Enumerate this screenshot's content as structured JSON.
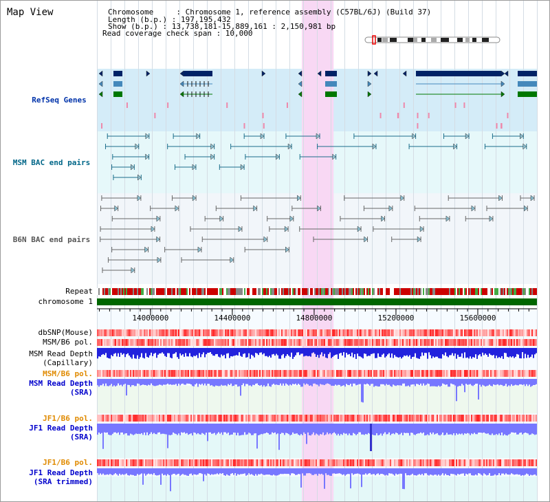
{
  "title": "Map View",
  "info": {
    "chromosome": "Chromosome     : Chromosome 1, reference assembly (C57BL/6J) (Build 37)",
    "length": "Length (b.p.) : 197,195,432",
    "show": "Show (b.p.) : 13,738,181-15,889,161 : 2,150,981 bp",
    "span": "Read coverage check span : 10,000"
  },
  "view": {
    "start": 13738181,
    "end": 15889161,
    "highlight": [
      14740000,
      14895000
    ]
  },
  "tracks": {
    "refseq": {
      "label": "RefSeq Genes",
      "color": "#0033aa"
    },
    "msm_bac": {
      "label": "MSM BAC end pairs",
      "color": "#006688"
    },
    "b6n_bac": {
      "label": "B6N BAC end pairs",
      "color": "#555555"
    },
    "repeat": {
      "label": "Repeat"
    },
    "chromosome": {
      "label": "chromosome 1"
    },
    "dbsnp": {
      "label": "dbSNP(Mouse)"
    },
    "msm_b6_pol": {
      "label": "MSM/B6 pol."
    },
    "msm_depth_cap": {
      "label": "MSM Read Depth\n(Capillary)"
    },
    "msm_b6_pol2": {
      "label": "MSM/B6 pol.",
      "color": "#e08a00"
    },
    "msm_depth_sra": {
      "label": "MSM Read Depth\n(SRA)",
      "color": "#0000cc"
    },
    "jf1_b6_pol": {
      "label": "JF1/B6 pol.",
      "color": "#e08a00"
    },
    "jf1_depth_sra": {
      "label": "JF1 Read Depth\n(SRA)",
      "color": "#0000cc"
    },
    "jf1_b6_pol2": {
      "label": "JF1/B6 pol.",
      "color": "#e08a00"
    },
    "jf1_depth_trim": {
      "label": "JF1 Read Depth\n(SRA trimmed)",
      "color": "#0000cc"
    }
  },
  "axis_ticks": [
    {
      "pos": 14000000,
      "label": "14000000"
    },
    {
      "pos": 14400000,
      "label": "14400000"
    },
    {
      "pos": 14800000,
      "label": "14800000"
    },
    {
      "pos": 15200000,
      "label": "15200000"
    },
    {
      "pos": 15600000,
      "label": "15600000"
    }
  ],
  "colors": {
    "highlight": "#f8d8f4",
    "refseq_bg": "#d4ecf8",
    "msm_bac_bg": "#e6f8fa",
    "b6n_bac_bg": "#f2f6fa",
    "gene_navy": "#002266",
    "gene_teal": "#4488bb",
    "gene_green": "#007700",
    "repeat_red": "#cc0000",
    "chrom_green": "#006600",
    "pol_red": "#ee2222",
    "depth_blue": "#2222dd",
    "depth_lavender": "#7777ff",
    "pink_mark": "#ee88aa"
  }
}
